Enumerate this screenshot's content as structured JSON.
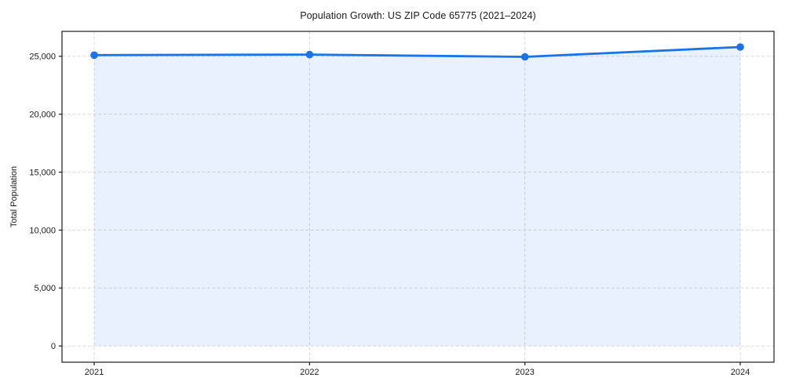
{
  "chart_data": {
    "type": "area",
    "title": "Population Growth: US ZIP Code 65775 (2021–2024)",
    "xlabel": "",
    "ylabel": "Total Population",
    "x": [
      "2021",
      "2022",
      "2023",
      "2024"
    ],
    "series": [
      {
        "name": "Total Population",
        "values": [
          25100,
          25150,
          24950,
          25800
        ]
      }
    ],
    "yticks": [
      0,
      5000,
      10000,
      15000,
      20000,
      25000
    ],
    "ytick_labels": [
      "0",
      "5,000",
      "10,000",
      "15,000",
      "20,000",
      "25,000"
    ],
    "ylim": [
      -1400,
      27150
    ],
    "grid": {
      "style": "dashed",
      "horizontal": true,
      "vertical": true
    },
    "legend": "none",
    "marker": "circle",
    "colors": {
      "line": "#1a73e8",
      "fill": "rgba(26,115,232,0.10)",
      "grid": "#d9d9d9",
      "spine": "#1a1a1a",
      "text": "#1a1a1a",
      "background": "#ffffff"
    }
  }
}
